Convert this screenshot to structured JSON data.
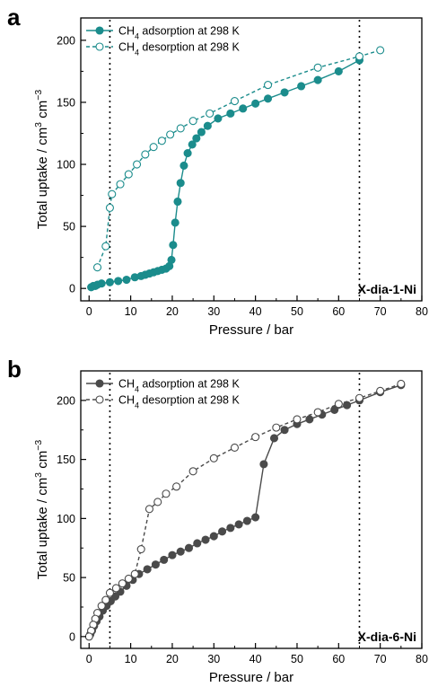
{
  "chart_data": [
    {
      "type": "scatter",
      "panel_label": "a",
      "xlabel": "Pressure / bar",
      "ylabel": "Total uptake / cm³ cm⁻³",
      "xlim": [
        -2,
        80
      ],
      "ylim": [
        -10,
        218
      ],
      "xticks": [
        0,
        10,
        20,
        30,
        40,
        50,
        60,
        70,
        80
      ],
      "yticks": [
        0,
        50,
        100,
        150,
        200
      ],
      "grid": false,
      "legend_position": "top-left",
      "vlines": [
        5,
        65
      ],
      "annotation": "X-dia-1-Ni",
      "series": [
        {
          "name": "CH4 adsorption at 298 K",
          "color": "#1b8c8c",
          "marker": "filled-circle",
          "line": "solid",
          "x": [
            0.5,
            1.0,
            1.5,
            2.0,
            3.0,
            5.0,
            7.0,
            9.0,
            11.0,
            12.5,
            13.5,
            14.5,
            15.5,
            16.5,
            17.5,
            18.5,
            19.3,
            19.8,
            20.2,
            20.7,
            21.3,
            22.0,
            22.8,
            23.7,
            24.8,
            25.8,
            27.0,
            28.5,
            31.0,
            34.0,
            37.0,
            40.0,
            43.0,
            47.0,
            51.0,
            55.0,
            60.0,
            65.0
          ],
          "y": [
            1,
            2,
            2,
            3,
            4,
            5,
            6,
            7,
            9,
            10,
            11,
            12,
            13,
            14,
            15,
            16,
            18,
            23,
            35,
            53,
            70,
            85,
            99,
            109,
            116,
            121,
            126,
            131,
            137,
            141,
            145,
            149,
            153,
            158,
            163,
            168,
            175,
            184
          ]
        },
        {
          "name": "CH4 desorption at 298 K",
          "color": "#1b8c8c",
          "marker": "open-circle",
          "line": "dashed",
          "x": [
            70.0,
            65.0,
            55.0,
            43.0,
            35.0,
            29.0,
            25.0,
            22.0,
            19.5,
            17.5,
            15.5,
            13.5,
            11.5,
            9.5,
            7.5,
            5.5,
            5.0,
            4.0,
            2.0
          ],
          "y": [
            192,
            187,
            178,
            164,
            151,
            141,
            135,
            129,
            124,
            119,
            114,
            108,
            100,
            92,
            84,
            76,
            65,
            34,
            17
          ]
        }
      ]
    },
    {
      "type": "scatter",
      "panel_label": "b",
      "xlabel": "Pressure / bar",
      "ylabel": "Total uptake / cm³ cm⁻³",
      "xlim": [
        -2,
        80
      ],
      "ylim": [
        -10,
        225
      ],
      "xticks": [
        0,
        10,
        20,
        30,
        40,
        50,
        60,
        70,
        80
      ],
      "yticks": [
        0,
        50,
        100,
        150,
        200
      ],
      "grid": false,
      "legend_position": "top-left",
      "vlines": [
        5,
        65
      ],
      "annotation": "X-dia-6-Ni",
      "series": [
        {
          "name": "CH4 adsorption at 298 K",
          "color": "#4a4a4a",
          "marker": "filled-circle",
          "line": "solid",
          "x": [
            0.3,
            0.7,
            1.2,
            1.8,
            2.5,
            3.3,
            4.2,
            5.2,
            6.3,
            7.5,
            9.0,
            10.5,
            12.0,
            14.0,
            16.0,
            18.0,
            20.0,
            22.0,
            24.0,
            26.0,
            28.0,
            30.0,
            32.0,
            34.0,
            36.0,
            38.0,
            40.0,
            42.0,
            44.5,
            47.0,
            50.0,
            53.0,
            56.0,
            59.0,
            62.0,
            65.0,
            70.0,
            75.0
          ],
          "y": [
            2,
            5,
            9,
            13,
            17,
            22,
            26,
            30,
            34,
            38,
            43,
            48,
            53,
            57,
            61,
            65,
            69,
            72,
            75,
            79,
            82,
            85,
            89,
            92,
            95,
            98,
            101,
            146,
            168,
            175,
            180,
            184,
            188,
            192,
            196,
            200,
            207,
            213
          ]
        },
        {
          "name": "CH4 desorption at 298 K",
          "color": "#4a4a4a",
          "marker": "open-circle",
          "line": "dashed",
          "x": [
            75.0,
            70.0,
            65.0,
            60.0,
            55.0,
            50.0,
            45.0,
            40.0,
            35.0,
            30.0,
            25.0,
            21.0,
            18.5,
            16.5,
            14.5,
            12.5,
            11.0,
            9.5,
            8.0,
            6.5,
            5.0,
            4.0,
            3.0,
            2.0,
            1.5,
            1.0,
            0.5,
            0.0
          ],
          "y": [
            214,
            208,
            202,
            197,
            190,
            184,
            177,
            169,
            160,
            151,
            140,
            127,
            121,
            114,
            108,
            74,
            53,
            49,
            45,
            41,
            37,
            31,
            26,
            20,
            15,
            10,
            5,
            0
          ]
        }
      ]
    }
  ]
}
